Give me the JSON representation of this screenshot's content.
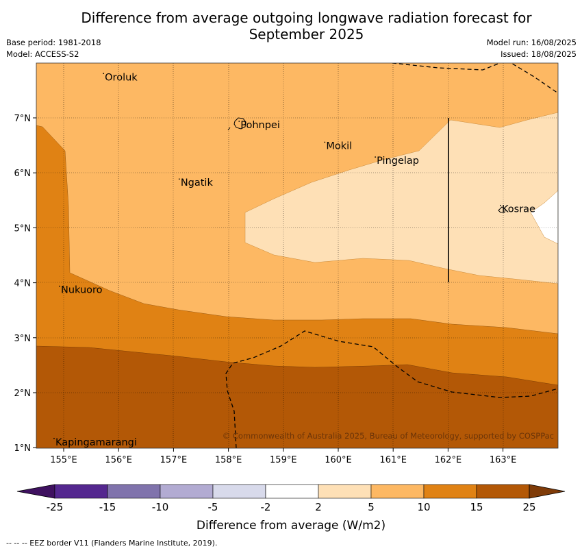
{
  "title_line1": "Difference from average outgoing longwave radiation forecast for",
  "title_line2": "September 2025",
  "meta": {
    "base_period": "Base period: 1981-2018",
    "model": "Model: ACCESS-S2",
    "model_run": "Model run: 16/08/2025",
    "issued": "Issued: 18/08/2025"
  },
  "map": {
    "lon_ticks": [
      "155°E",
      "156°E",
      "157°E",
      "158°E",
      "159°E",
      "160°E",
      "161°E",
      "162°E",
      "163°E"
    ],
    "lat_ticks": [
      "7°N",
      "6°N",
      "5°N",
      "4°N",
      "3°N",
      "2°N",
      "1°N"
    ],
    "places": [
      {
        "name": "Oroluk",
        "lon": 155.75,
        "lat": 7.72
      },
      {
        "name": "Pohnpei",
        "lon": 158.22,
        "lat": 6.85
      },
      {
        "name": "Mokil",
        "lon": 159.78,
        "lat": 6.47
      },
      {
        "name": "Pingelap",
        "lon": 160.7,
        "lat": 6.2
      },
      {
        "name": "Ngatik",
        "lon": 157.13,
        "lat": 5.8
      },
      {
        "name": "Kosrae",
        "lon": 162.98,
        "lat": 5.32
      },
      {
        "name": "Nukuoro",
        "lon": 154.95,
        "lat": 3.85
      },
      {
        "name": "Kapingamarangi",
        "lon": 154.85,
        "lat": 1.08
      }
    ],
    "copyright": "© Commonwealth of Australia 2025, Bureau of Meteorology, supported by COSPPac"
  },
  "colorbar": {
    "label": "Difference from average (W/m2)",
    "levels": [
      "-25",
      "-15",
      "-10",
      "-5",
      "-2",
      "2",
      "5",
      "10",
      "15",
      "25"
    ],
    "colors": [
      "#3f1160",
      "#54278f",
      "#8073ac",
      "#b2abd2",
      "#d8daeb",
      "#ffffff",
      "#fee0b6",
      "#fdb863",
      "#e08214",
      "#b35806",
      "#7f3b08"
    ]
  },
  "footnote": "--  --  -- EEZ border V11 (Flanders Marine Institute, 2019)."
}
